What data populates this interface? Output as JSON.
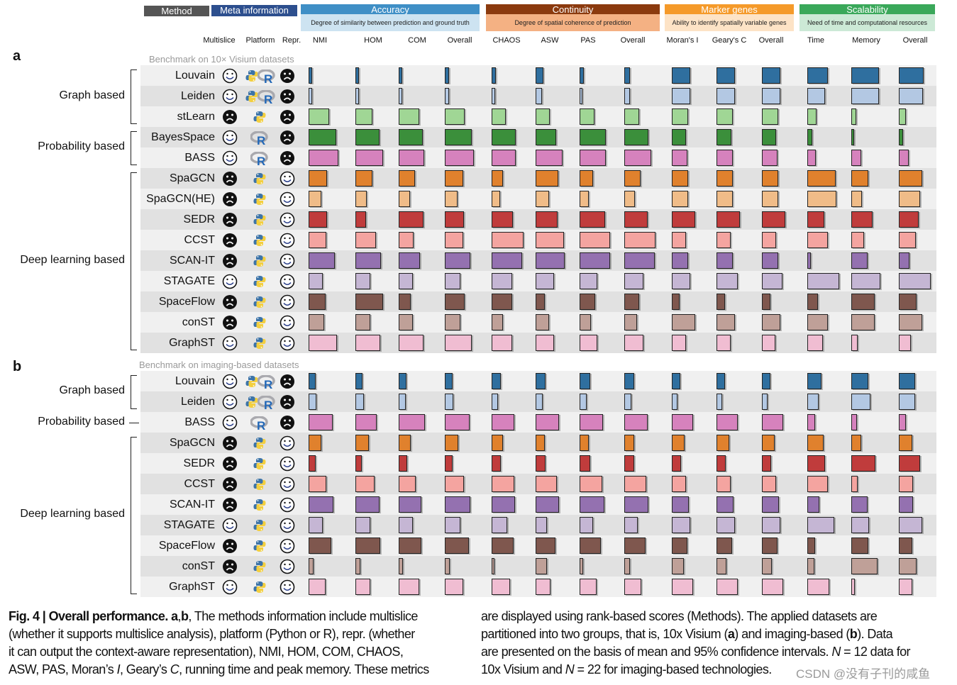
{
  "header": {
    "method": "Method",
    "meta": "Meta information",
    "categories": [
      {
        "title": "Accuracy",
        "desc": "Degree of similarity between prediction and ground truth",
        "color": "#3f8fc6",
        "desc_color": "#cde3f1"
      },
      {
        "title": "Continuity",
        "desc": "Degree of spatial coherence of prediction",
        "color": "#8b3a0e",
        "desc_color": "#f4b183"
      },
      {
        "title": "Marker genes",
        "desc": "Ability to identify spatially variable genes",
        "color": "#f59a2a",
        "desc_color": "#fde3c6"
      },
      {
        "title": "Scalability",
        "desc": "Need of time and computational resources",
        "color": "#3aa85a",
        "desc_color": "#cce9d6"
      }
    ],
    "meta_columns": [
      "Multislice",
      "Platform",
      "Repr."
    ],
    "metric_columns": [
      "NMI",
      "HOM",
      "COM",
      "Overall",
      "CHAOS",
      "ASW",
      "PAS",
      "Overall",
      "Moran's I",
      "Geary's C",
      "Overall",
      "Time",
      "Memory",
      "Overall"
    ]
  },
  "colors": {
    "Louvain": "#2f6f9f",
    "Leiden": "#b3c8e3",
    "stLearn": "#a0d695",
    "BayesSpace": "#3b8f3b",
    "BASS": "#d682bd",
    "SpaGCN": "#e0812d",
    "SpaGCN(HE)": "#f0bc88",
    "SEDR": "#c03c3c",
    "CCST": "#f4a4a0",
    "SCAN-IT": "#9471b0",
    "STAGATE": "#c5b6d4",
    "SpaceFlow": "#7f574e",
    "conST": "#bfa098",
    "GraphST": "#f0bdd2"
  },
  "panels": [
    {
      "label": "a",
      "subtitle": "Benchmark on 10× Visium datasets",
      "groups": [
        {
          "label": "Graph based",
          "methods": [
            "Louvain",
            "Leiden",
            "stLearn"
          ]
        },
        {
          "label": "Probability based",
          "methods": [
            "BayesSpace",
            "BASS"
          ]
        },
        {
          "label": "Deep learning based",
          "methods": [
            "SpaGCN",
            "SpaGCN(HE)",
            "SEDR",
            "CCST",
            "SCAN-IT",
            "STAGATE",
            "SpaceFlow",
            "conST",
            "GraphST"
          ]
        }
      ],
      "methods": [
        {
          "name": "Louvain",
          "multislice": "happy",
          "platform": [
            "python",
            "r"
          ],
          "repr": "sad",
          "scores": [
            0.1,
            0.1,
            0.1,
            0.12,
            0.12,
            0.22,
            0.12,
            0.16,
            0.51,
            0.51,
            0.51,
            0.57,
            0.77,
            0.7
          ]
        },
        {
          "name": "Leiden",
          "multislice": "happy",
          "platform": [
            "python",
            "r"
          ],
          "repr": "sad",
          "scores": [
            0.1,
            0.1,
            0.1,
            0.12,
            0.1,
            0.18,
            0.08,
            0.15,
            0.51,
            0.51,
            0.51,
            0.5,
            0.77,
            0.67
          ]
        },
        {
          "name": "stLearn",
          "multislice": "sad",
          "platform": [
            "python"
          ],
          "repr": "sad",
          "scores": [
            0.57,
            0.48,
            0.57,
            0.55,
            0.39,
            0.39,
            0.41,
            0.41,
            0.45,
            0.45,
            0.45,
            0.25,
            0.13,
            0.19
          ]
        },
        {
          "name": "BayesSpace",
          "multislice": "happy",
          "platform": [
            "r"
          ],
          "repr": "sad",
          "scores": [
            0.78,
            0.68,
            0.67,
            0.75,
            0.68,
            0.58,
            0.73,
            0.68,
            0.39,
            0.42,
            0.4,
            0.13,
            0.08,
            0.11
          ]
        },
        {
          "name": "BASS",
          "multislice": "happy",
          "platform": [
            "r"
          ],
          "repr": "sad",
          "scores": [
            0.83,
            0.78,
            0.71,
            0.81,
            0.68,
            0.75,
            0.73,
            0.75,
            0.43,
            0.45,
            0.44,
            0.23,
            0.28,
            0.27
          ]
        },
        {
          "name": "SpaGCN",
          "multislice": "sad",
          "platform": [
            "python"
          ],
          "repr": "happy",
          "scores": [
            0.51,
            0.48,
            0.45,
            0.51,
            0.32,
            0.63,
            0.37,
            0.45,
            0.45,
            0.45,
            0.45,
            0.8,
            0.47,
            0.65
          ]
        },
        {
          "name": "SpaGCN(HE)",
          "multislice": "sad",
          "platform": [
            "python"
          ],
          "repr": "happy",
          "scores": [
            0.35,
            0.32,
            0.32,
            0.35,
            0.23,
            0.38,
            0.25,
            0.29,
            0.45,
            0.45,
            0.45,
            0.81,
            0.3,
            0.59
          ]
        },
        {
          "name": "SEDR",
          "multislice": "sad",
          "platform": [
            "python"
          ],
          "repr": "happy",
          "scores": [
            0.51,
            0.29,
            0.69,
            0.53,
            0.59,
            0.62,
            0.71,
            0.65,
            0.65,
            0.65,
            0.65,
            0.48,
            0.6,
            0.55
          ]
        },
        {
          "name": "CCST",
          "multislice": "sad",
          "platform": [
            "python"
          ],
          "repr": "happy",
          "scores": [
            0.5,
            0.57,
            0.41,
            0.52,
            0.89,
            0.8,
            0.85,
            0.87,
            0.39,
            0.4,
            0.39,
            0.58,
            0.35,
            0.48
          ]
        },
        {
          "name": "SCAN-IT",
          "multislice": "sad",
          "platform": [
            "python"
          ],
          "repr": "happy",
          "scores": [
            0.73,
            0.71,
            0.6,
            0.71,
            0.85,
            0.82,
            0.85,
            0.85,
            0.45,
            0.45,
            0.45,
            0.09,
            0.45,
            0.29
          ]
        },
        {
          "name": "STAGATE",
          "multislice": "happy",
          "platform": [
            "python"
          ],
          "repr": "happy",
          "scores": [
            0.4,
            0.42,
            0.39,
            0.43,
            0.57,
            0.51,
            0.49,
            0.53,
            0.51,
            0.59,
            0.58,
            0.89,
            0.82,
            0.89
          ]
        },
        {
          "name": "SpaceFlow",
          "multislice": "sad",
          "platform": [
            "python"
          ],
          "repr": "happy",
          "scores": [
            0.47,
            0.77,
            0.33,
            0.55,
            0.57,
            0.25,
            0.43,
            0.41,
            0.22,
            0.23,
            0.23,
            0.3,
            0.65,
            0.49
          ]
        },
        {
          "name": "conST",
          "multislice": "sad",
          "platform": [
            "python"
          ],
          "repr": "happy",
          "scores": [
            0.43,
            0.42,
            0.39,
            0.43,
            0.32,
            0.38,
            0.31,
            0.35,
            0.65,
            0.52,
            0.51,
            0.58,
            0.65,
            0.65
          ]
        },
        {
          "name": "GraphST",
          "multislice": "happy",
          "platform": [
            "python"
          ],
          "repr": "happy",
          "scores": [
            0.79,
            0.7,
            0.7,
            0.75,
            0.58,
            0.51,
            0.49,
            0.53,
            0.39,
            0.4,
            0.38,
            0.43,
            0.18,
            0.33
          ]
        }
      ]
    },
    {
      "label": "b",
      "subtitle": "Benchmark on imaging-based datasets",
      "groups": [
        {
          "label": "Graph based",
          "methods": [
            "Louvain",
            "Leiden"
          ]
        },
        {
          "label": "Probability based",
          "methods": [
            "BASS"
          ]
        },
        {
          "label": "Deep learning based",
          "methods": [
            "SpaGCN",
            "SEDR",
            "CCST",
            "SCAN-IT",
            "STAGATE",
            "SpaceFlow",
            "conST",
            "GraphST"
          ]
        }
      ],
      "methods": [
        {
          "name": "Louvain",
          "multislice": "happy",
          "platform": [
            "python",
            "r"
          ],
          "repr": "sad",
          "scores": [
            0.2,
            0.2,
            0.22,
            0.21,
            0.25,
            0.27,
            0.3,
            0.27,
            0.23,
            0.23,
            0.23,
            0.4,
            0.47,
            0.45
          ]
        },
        {
          "name": "Leiden",
          "multislice": "happy",
          "platform": [
            "python",
            "r"
          ],
          "repr": "sad",
          "scores": [
            0.22,
            0.23,
            0.2,
            0.23,
            0.18,
            0.19,
            0.19,
            0.19,
            0.15,
            0.15,
            0.15,
            0.32,
            0.53,
            0.45
          ]
        },
        {
          "name": "BASS",
          "multislice": "happy",
          "platform": [
            "r"
          ],
          "repr": "sad",
          "scores": [
            0.67,
            0.59,
            0.73,
            0.7,
            0.63,
            0.65,
            0.65,
            0.65,
            0.59,
            0.59,
            0.59,
            0.22,
            0.15,
            0.19
          ]
        },
        {
          "name": "SpaGCN",
          "multislice": "sad",
          "platform": [
            "python"
          ],
          "repr": "happy",
          "scores": [
            0.35,
            0.37,
            0.33,
            0.38,
            0.31,
            0.25,
            0.25,
            0.27,
            0.35,
            0.35,
            0.35,
            0.45,
            0.28,
            0.37
          ]
        },
        {
          "name": "SEDR",
          "multislice": "sad",
          "platform": [
            "python"
          ],
          "repr": "happy",
          "scores": [
            0.2,
            0.17,
            0.23,
            0.21,
            0.25,
            0.27,
            0.3,
            0.28,
            0.25,
            0.25,
            0.25,
            0.49,
            0.67,
            0.59
          ]
        },
        {
          "name": "CCST",
          "multislice": "sad",
          "platform": [
            "python"
          ],
          "repr": "happy",
          "scores": [
            0.5,
            0.53,
            0.48,
            0.53,
            0.63,
            0.59,
            0.63,
            0.62,
            0.39,
            0.39,
            0.39,
            0.58,
            0.17,
            0.39
          ]
        },
        {
          "name": "SCAN-IT",
          "multislice": "sad",
          "platform": [
            "python"
          ],
          "repr": "happy",
          "scores": [
            0.7,
            0.68,
            0.63,
            0.71,
            0.65,
            0.65,
            0.69,
            0.67,
            0.48,
            0.47,
            0.48,
            0.33,
            0.45,
            0.4
          ]
        },
        {
          "name": "STAGATE",
          "multislice": "happy",
          "platform": [
            "python"
          ],
          "repr": "happy",
          "scores": [
            0.39,
            0.42,
            0.4,
            0.43,
            0.43,
            0.31,
            0.37,
            0.37,
            0.52,
            0.52,
            0.52,
            0.75,
            0.5,
            0.65
          ]
        },
        {
          "name": "SpaceFlow",
          "multislice": "sad",
          "platform": [
            "python"
          ],
          "repr": "happy",
          "scores": [
            0.63,
            0.7,
            0.63,
            0.68,
            0.61,
            0.55,
            0.6,
            0.59,
            0.43,
            0.43,
            0.43,
            0.22,
            0.48,
            0.37
          ]
        },
        {
          "name": "conST",
          "multislice": "sad",
          "platform": [
            "python"
          ],
          "repr": "happy",
          "scores": [
            0.13,
            0.13,
            0.12,
            0.13,
            0.08,
            0.32,
            0.09,
            0.15,
            0.33,
            0.28,
            0.28,
            0.2,
            0.73,
            0.49
          ]
        },
        {
          "name": "GraphST",
          "multislice": "happy",
          "platform": [
            "python"
          ],
          "repr": "happy",
          "scores": [
            0.48,
            0.42,
            0.58,
            0.52,
            0.51,
            0.42,
            0.47,
            0.47,
            0.59,
            0.59,
            0.59,
            0.62,
            0.1,
            0.37
          ]
        }
      ]
    }
  ],
  "caption": {
    "left": [
      [
        {
          "t": "Fig. 4 | Overall performance. a",
          "s": "b"
        },
        {
          "t": ",",
          "s": ""
        },
        {
          "t": "b",
          "s": "b"
        },
        {
          "t": ", The methods information include multislice",
          "s": ""
        }
      ],
      [
        {
          "t": "(whether it supports multislice analysis), platform (Python or R), repr. (whether",
          "s": ""
        }
      ],
      [
        {
          "t": "it can output the context-aware representation), NMI, HOM, COM, CHAOS,",
          "s": ""
        }
      ],
      [
        {
          "t": "ASW, PAS, Moran’s ",
          "s": ""
        },
        {
          "t": "I",
          "s": "i"
        },
        {
          "t": ", Geary’s ",
          "s": ""
        },
        {
          "t": "C",
          "s": "i"
        },
        {
          "t": ", running time and peak memory. These metrics",
          "s": ""
        }
      ]
    ],
    "right": [
      [
        {
          "t": "are displayed using rank-based scores (Methods). The applied datasets are",
          "s": ""
        }
      ],
      [
        {
          "t": "partitioned into two groups, that is, 10x Visium (",
          "s": ""
        },
        {
          "t": "a",
          "s": "b"
        },
        {
          "t": ") and imaging-based (",
          "s": ""
        },
        {
          "t": "b",
          "s": "b"
        },
        {
          "t": "). Data",
          "s": ""
        }
      ],
      [
        {
          "t": "are presented on the basis of mean and 95% confidence intervals. ",
          "s": ""
        },
        {
          "t": "N",
          "s": "i"
        },
        {
          "t": " = 12 data for",
          "s": ""
        }
      ],
      [
        {
          "t": "10x Visium and ",
          "s": ""
        },
        {
          "t": "N",
          "s": "i"
        },
        {
          "t": " = 22 for imaging-based technologies.",
          "s": ""
        }
      ]
    ]
  },
  "watermark": "CSDN @没有子刊的咸鱼"
}
